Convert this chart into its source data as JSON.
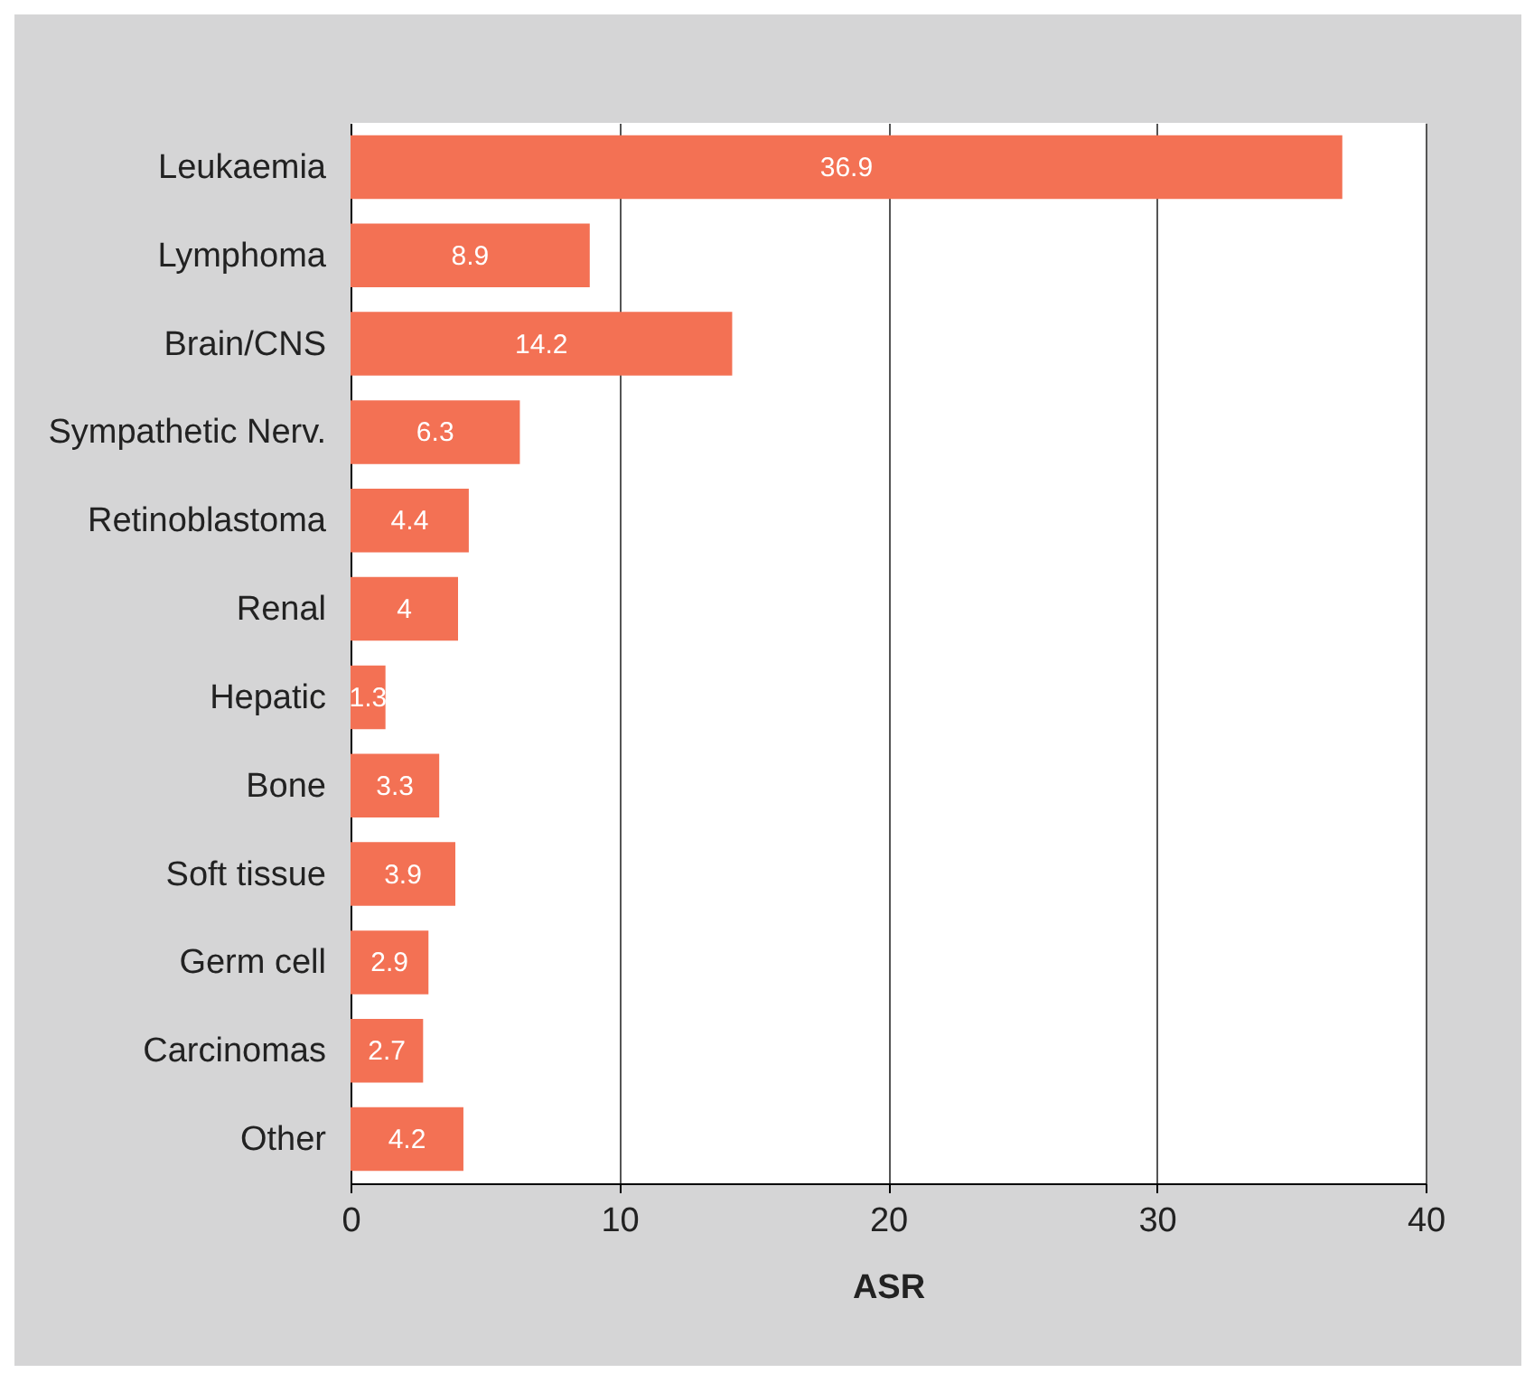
{
  "chart_data": {
    "type": "bar",
    "orientation": "horizontal",
    "xlabel": "ASR",
    "categories": [
      "Leukaemia",
      "Lymphoma",
      "Brain/CNS",
      "Sympathetic Nerv.",
      "Retinoblastoma",
      "Renal",
      "Hepatic",
      "Bone",
      "Soft tissue",
      "Germ cell",
      "Carcinomas",
      "Other"
    ],
    "values": [
      36.9,
      8.9,
      14.2,
      6.3,
      4.4,
      4,
      1.3,
      3.3,
      3.9,
      2.9,
      2.7,
      4.2
    ],
    "color": "#f37154",
    "xlim": [
      0,
      40
    ],
    "xticks": [
      0,
      10,
      20,
      30,
      40
    ],
    "grid": "x",
    "data_labels": true
  }
}
